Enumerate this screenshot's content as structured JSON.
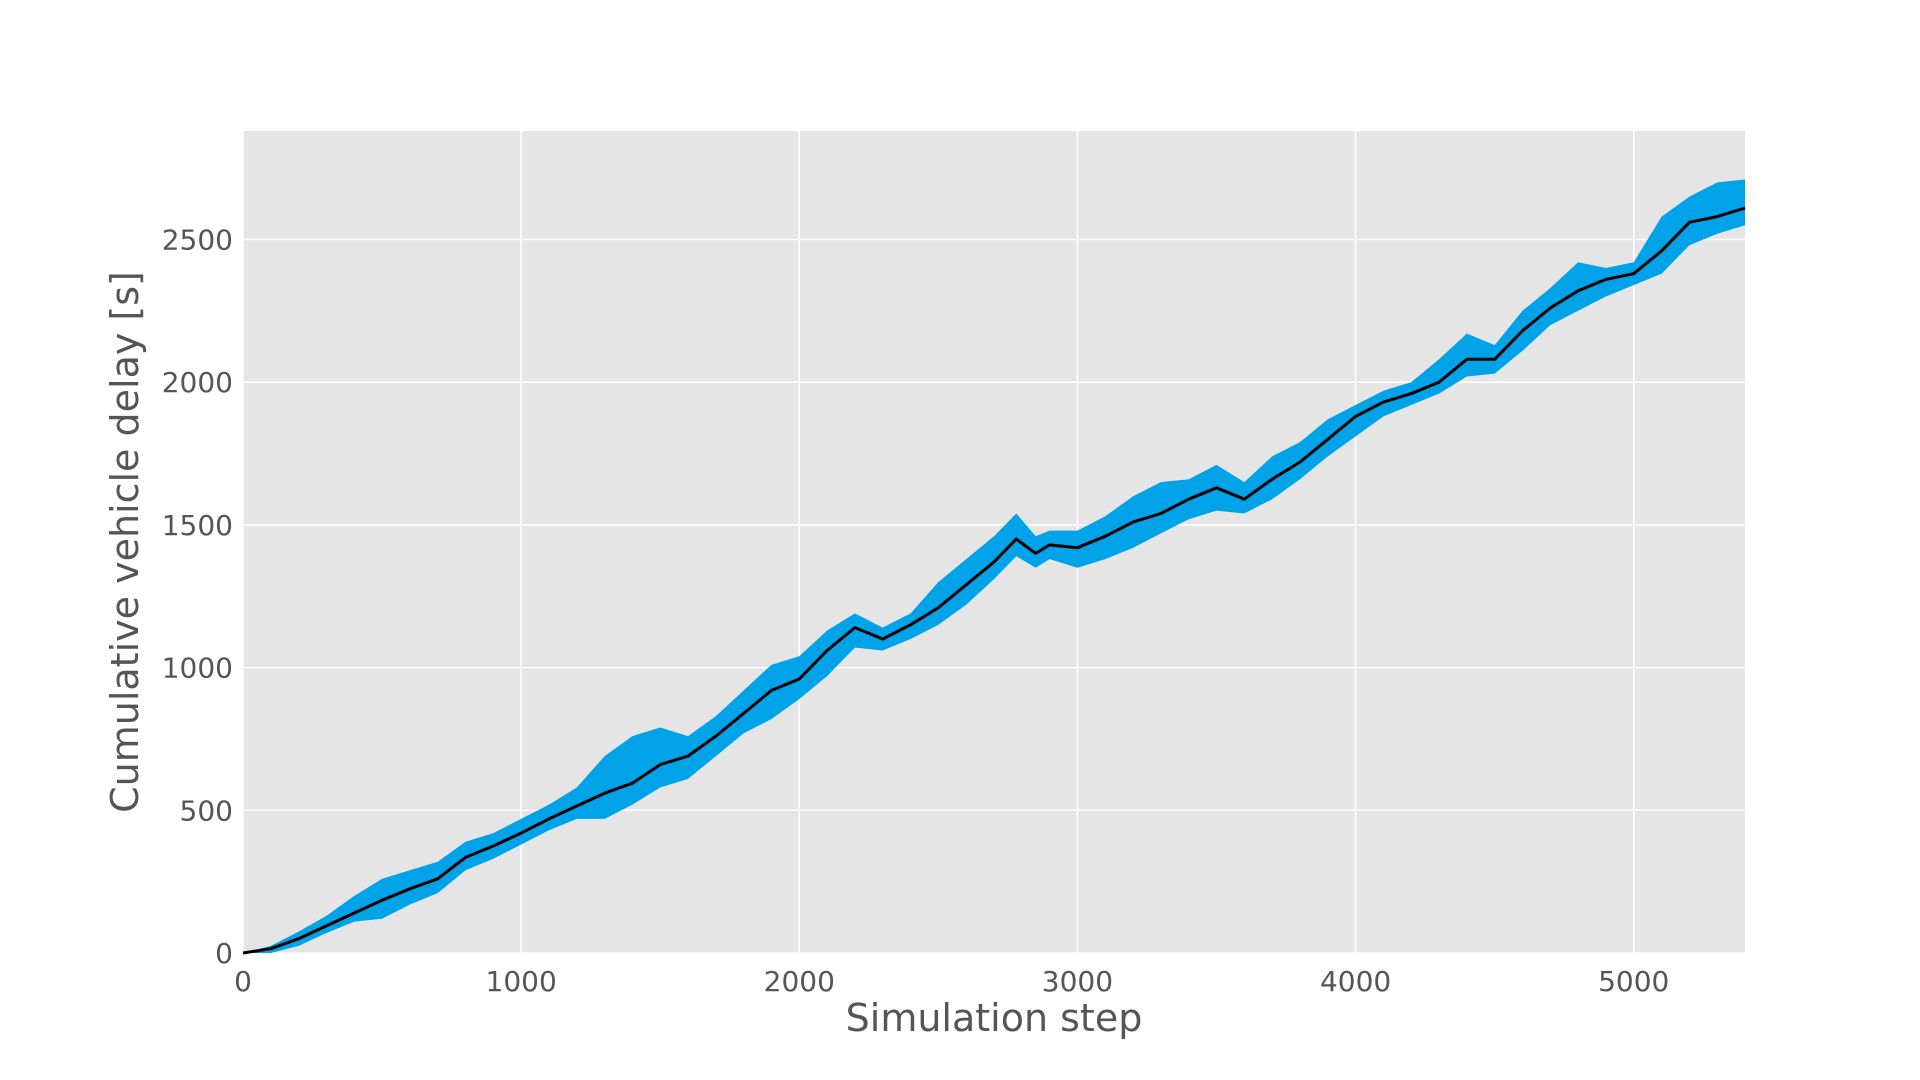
{
  "chart_data": {
    "type": "line",
    "title": "",
    "xlabel": "Simulation step",
    "ylabel": "Cumulative vehicle delay [s]",
    "xlim": [
      0,
      5400
    ],
    "ylim": [
      0,
      2880
    ],
    "xticks": [
      0,
      1000,
      2000,
      3000,
      4000,
      5000
    ],
    "yticks": [
      0,
      500,
      1000,
      1500,
      2000,
      2500
    ],
    "grid": true,
    "legend": "none",
    "colors": {
      "background": "#e5e5e5",
      "grid": "#ffffff",
      "line": "#000000",
      "band": "#00a2e8"
    },
    "series": [
      {
        "x": [
          0,
          100,
          200,
          300,
          400,
          500,
          600,
          700,
          800,
          900,
          1000,
          1100,
          1200,
          1300,
          1400,
          1500,
          1600,
          1700,
          1800,
          1900,
          2000,
          2100,
          2200,
          2300,
          2400,
          2500,
          2600,
          2700,
          2780,
          2850,
          2900,
          3000,
          3100,
          3200,
          3300,
          3400,
          3500,
          3600,
          3700,
          3800,
          3900,
          4000,
          4100,
          4200,
          4300,
          4400,
          4500,
          4600,
          4700,
          4800,
          4900,
          5000,
          5100,
          5200,
          5300,
          5400
        ],
        "y": [
          0,
          15,
          50,
          95,
          140,
          185,
          225,
          260,
          335,
          375,
          420,
          470,
          515,
          560,
          595,
          660,
          690,
          760,
          840,
          920,
          960,
          1060,
          1140,
          1100,
          1150,
          1210,
          1290,
          1370,
          1450,
          1400,
          1430,
          1420,
          1460,
          1510,
          1540,
          1590,
          1630,
          1590,
          1660,
          1720,
          1800,
          1880,
          1930,
          1960,
          2000,
          2080,
          2080,
          2180,
          2260,
          2320,
          2360,
          2380,
          2460,
          2560,
          2580,
          2610
        ],
        "lower": [
          0,
          0,
          25,
          70,
          110,
          120,
          170,
          210,
          290,
          330,
          380,
          430,
          470,
          470,
          520,
          580,
          610,
          690,
          770,
          820,
          890,
          970,
          1070,
          1060,
          1100,
          1150,
          1220,
          1310,
          1390,
          1350,
          1380,
          1350,
          1380,
          1420,
          1470,
          1520,
          1550,
          1540,
          1590,
          1660,
          1740,
          1810,
          1880,
          1920,
          1960,
          2020,
          2030,
          2110,
          2200,
          2250,
          2300,
          2340,
          2380,
          2480,
          2520,
          2550
        ],
        "upper": [
          0,
          25,
          75,
          130,
          200,
          260,
          290,
          320,
          390,
          420,
          470,
          520,
          580,
          690,
          760,
          790,
          760,
          830,
          920,
          1010,
          1040,
          1130,
          1190,
          1140,
          1190,
          1300,
          1380,
          1460,
          1540,
          1460,
          1480,
          1480,
          1530,
          1600,
          1650,
          1660,
          1710,
          1650,
          1740,
          1790,
          1870,
          1920,
          1970,
          2000,
          2080,
          2170,
          2130,
          2250,
          2330,
          2420,
          2400,
          2420,
          2580,
          2650,
          2700,
          2710
        ]
      }
    ]
  }
}
